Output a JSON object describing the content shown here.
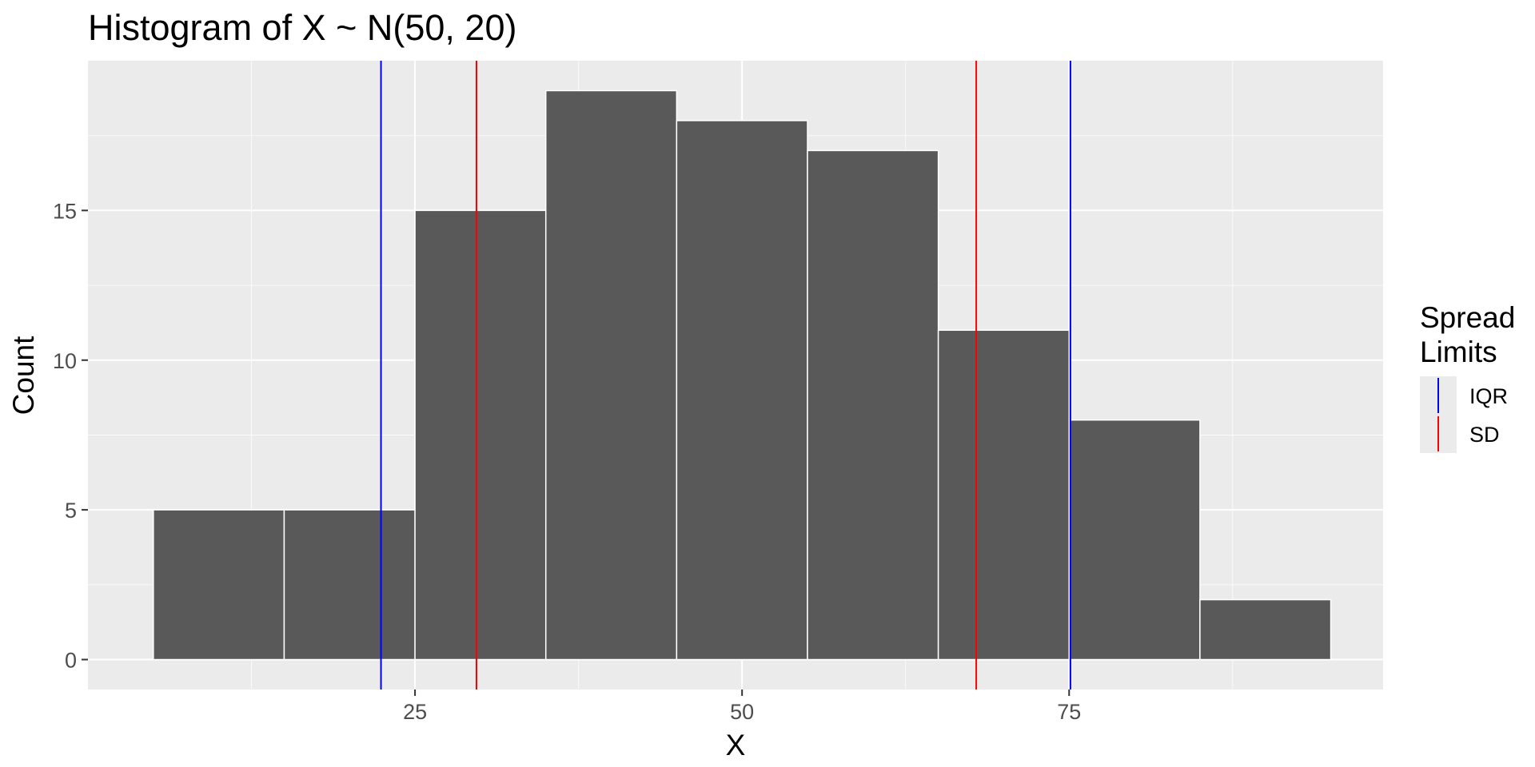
{
  "chart_data": {
    "type": "bar",
    "title": "Histogram of X ~ N(50, 20)",
    "xlabel": "X",
    "ylabel": "Count",
    "xlim": [
      0,
      99
    ],
    "ylim": [
      -1,
      20
    ],
    "x_ticks": [
      25,
      50,
      75
    ],
    "x_tick_labels": [
      "25",
      "50",
      "75"
    ],
    "y_ticks": [
      0,
      5,
      10,
      15
    ],
    "y_tick_labels": [
      "0",
      "5",
      "10",
      "15"
    ],
    "bins": [
      {
        "x_start": 5,
        "x_end": 15,
        "count": 5
      },
      {
        "x_start": 15,
        "x_end": 25,
        "count": 5
      },
      {
        "x_start": 25,
        "x_end": 35,
        "count": 15
      },
      {
        "x_start": 35,
        "x_end": 45,
        "count": 19
      },
      {
        "x_start": 45,
        "x_end": 55,
        "count": 18
      },
      {
        "x_start": 55,
        "x_end": 65,
        "count": 17
      },
      {
        "x_start": 65,
        "x_end": 75,
        "count": 11
      },
      {
        "x_start": 75,
        "x_end": 85,
        "count": 8
      },
      {
        "x_start": 85,
        "x_end": 95,
        "count": 2
      }
    ],
    "vlines": [
      {
        "series": "IQR",
        "x": 22.4
      },
      {
        "series": "IQR",
        "x": 75.1
      },
      {
        "series": "SD",
        "x": 29.7
      },
      {
        "series": "SD",
        "x": 67.9
      }
    ],
    "legend": {
      "title_lines": [
        "Spread",
        "Limits"
      ],
      "placement": "right",
      "entries": [
        {
          "label": "IQR",
          "color": "#0000ff"
        },
        {
          "label": "SD",
          "color": "#ff0000"
        }
      ]
    },
    "grid": true,
    "colors": {
      "bar_fill": "#595959",
      "bar_outline": "#ffffff",
      "panel_background": "#ebebeb",
      "grid": "#ffffff",
      "iqr": "#0000ff",
      "sd": "#ff0000"
    }
  }
}
